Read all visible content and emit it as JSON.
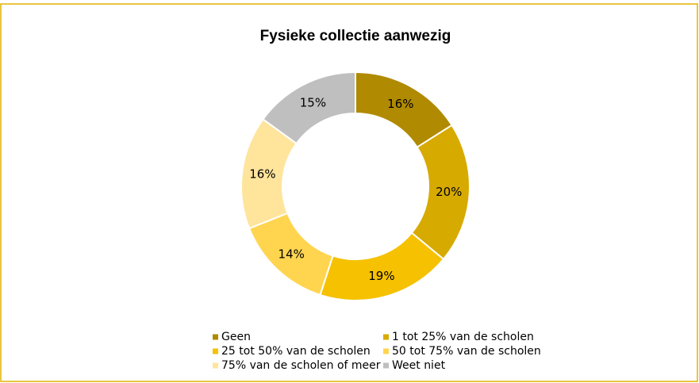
{
  "chart_data": {
    "type": "donut",
    "title": "Fysieke collectie aanwezig",
    "categories": [
      "Geen",
      "1 tot 25% van de scholen",
      "25 tot 50% van de scholen",
      "50 tot 75% van de scholen",
      "75% van de scholen of meer",
      "Weet niet"
    ],
    "values": [
      16,
      20,
      19,
      14,
      16,
      15
    ],
    "value_labels": [
      "16%",
      "20%",
      "19%",
      "14%",
      "16%",
      "15%"
    ],
    "colors": [
      "#b08a00",
      "#d7aa00",
      "#f5c100",
      "#ffd550",
      "#ffe49c",
      "#bfbfbf"
    ],
    "legend": "bottom"
  }
}
